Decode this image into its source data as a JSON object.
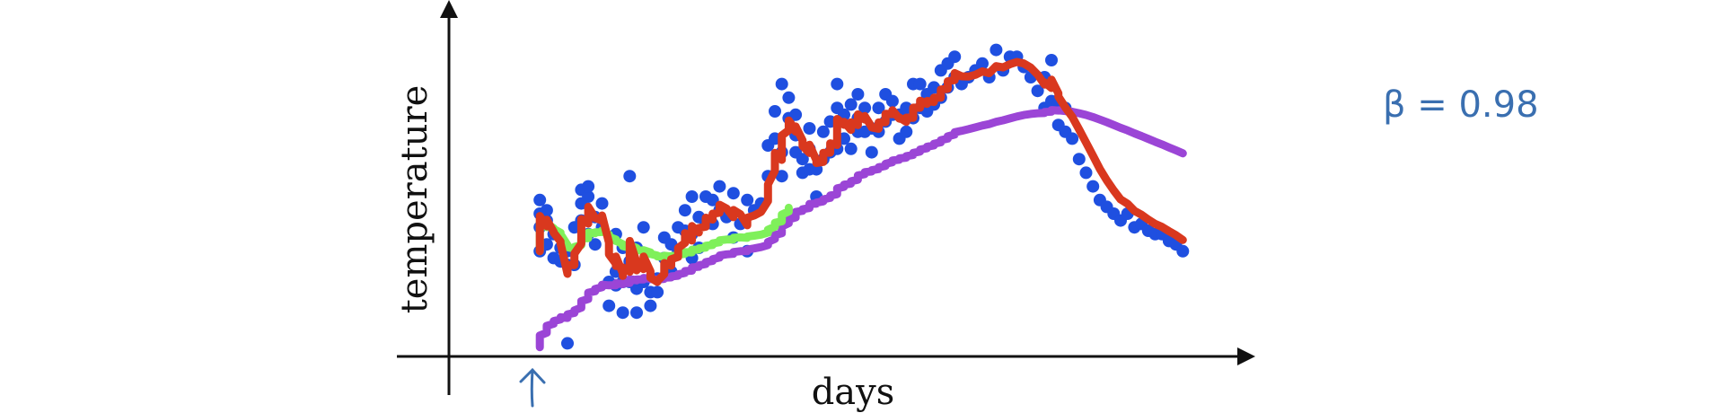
{
  "chart_data": {
    "type": "scatter",
    "title": "",
    "xlabel": "days",
    "ylabel": "temperature",
    "xlim": [
      0,
      100
    ],
    "ylim": [
      0,
      100
    ],
    "grid": false,
    "legend": "none",
    "annotation": "β = 0.98",
    "colors": {
      "points": "#1f4fe0",
      "red": "#d9381e",
      "green": "#7ff05a",
      "purple": "#9b45d6",
      "axis": "#111111",
      "annotation": "#3a6fb0"
    },
    "points": [
      [
        6,
        29
      ],
      [
        6,
        36
      ],
      [
        6,
        40
      ],
      [
        6,
        44
      ],
      [
        7,
        31
      ],
      [
        7,
        38
      ],
      [
        7,
        41
      ],
      [
        8,
        27
      ],
      [
        8,
        34
      ],
      [
        9,
        26
      ],
      [
        9,
        30
      ],
      [
        10,
        2
      ],
      [
        10,
        25
      ],
      [
        10,
        29
      ],
      [
        11,
        25
      ],
      [
        11,
        36
      ],
      [
        12,
        38
      ],
      [
        12,
        43
      ],
      [
        12,
        47
      ],
      [
        13,
        34
      ],
      [
        13,
        45
      ],
      [
        13,
        48
      ],
      [
        14,
        31
      ],
      [
        14,
        39
      ],
      [
        15,
        36
      ],
      [
        15,
        43
      ],
      [
        16,
        13
      ],
      [
        16,
        20
      ],
      [
        17,
        19
      ],
      [
        17,
        23
      ],
      [
        17,
        34
      ],
      [
        18,
        11
      ],
      [
        18,
        20
      ],
      [
        18,
        30
      ],
      [
        19,
        20
      ],
      [
        19,
        26
      ],
      [
        19,
        51
      ],
      [
        20,
        11
      ],
      [
        20,
        18
      ],
      [
        20,
        30
      ],
      [
        21,
        20
      ],
      [
        21,
        36
      ],
      [
        22,
        13
      ],
      [
        22,
        17
      ],
      [
        23,
        17
      ],
      [
        23,
        21
      ],
      [
        24,
        27
      ],
      [
        24,
        33
      ],
      [
        25,
        23
      ],
      [
        25,
        31
      ],
      [
        26,
        29
      ],
      [
        26,
        36
      ],
      [
        27,
        35
      ],
      [
        27,
        41
      ],
      [
        28,
        27
      ],
      [
        28,
        34
      ],
      [
        28,
        45
      ],
      [
        29,
        30
      ],
      [
        29,
        39
      ],
      [
        30,
        37
      ],
      [
        30,
        45
      ],
      [
        31,
        37
      ],
      [
        31,
        44
      ],
      [
        32,
        41
      ],
      [
        32,
        48
      ],
      [
        33,
        39
      ],
      [
        34,
        33
      ],
      [
        34,
        46
      ],
      [
        35,
        37
      ],
      [
        36,
        29
      ],
      [
        36,
        44
      ],
      [
        37,
        41
      ],
      [
        38,
        43
      ],
      [
        39,
        51
      ],
      [
        39,
        60
      ],
      [
        40,
        62
      ],
      [
        40,
        70
      ],
      [
        41,
        51
      ],
      [
        41,
        58
      ],
      [
        41,
        78
      ],
      [
        42,
        68
      ],
      [
        42,
        74
      ],
      [
        43,
        58
      ],
      [
        43,
        63
      ],
      [
        43,
        69
      ],
      [
        44,
        52
      ],
      [
        44,
        56
      ],
      [
        45,
        53
      ],
      [
        45,
        59
      ],
      [
        45,
        65
      ],
      [
        46,
        45
      ],
      [
        46,
        53
      ],
      [
        47,
        56
      ],
      [
        47,
        64
      ],
      [
        48,
        58
      ],
      [
        48,
        67
      ],
      [
        49,
        59
      ],
      [
        49,
        71
      ],
      [
        49,
        78
      ],
      [
        50,
        62
      ],
      [
        50,
        69
      ],
      [
        51,
        59
      ],
      [
        51,
        72
      ],
      [
        52,
        64
      ],
      [
        52,
        68
      ],
      [
        52,
        75
      ],
      [
        53,
        64
      ],
      [
        53,
        71
      ],
      [
        54,
        58
      ],
      [
        54,
        65
      ],
      [
        55,
        64
      ],
      [
        55,
        71
      ],
      [
        56,
        67
      ],
      [
        56,
        75
      ],
      [
        57,
        69
      ],
      [
        57,
        73
      ],
      [
        58,
        62
      ],
      [
        58,
        69
      ],
      [
        59,
        64
      ],
      [
        59,
        71
      ],
      [
        60,
        68
      ],
      [
        60,
        78
      ],
      [
        61,
        71
      ],
      [
        61,
        78
      ],
      [
        62,
        70
      ],
      [
        62,
        75
      ],
      [
        63,
        72
      ],
      [
        63,
        77
      ],
      [
        64,
        74
      ],
      [
        64,
        82
      ],
      [
        65,
        77
      ],
      [
        65,
        84
      ],
      [
        66,
        80
      ],
      [
        66,
        86
      ],
      [
        67,
        78
      ],
      [
        68,
        80
      ],
      [
        69,
        82
      ],
      [
        70,
        84
      ],
      [
        71,
        80
      ],
      [
        72,
        88
      ],
      [
        73,
        82
      ],
      [
        74,
        86
      ],
      [
        75,
        86
      ],
      [
        76,
        83
      ],
      [
        77,
        80
      ],
      [
        78,
        76
      ],
      [
        79,
        71
      ],
      [
        79,
        80
      ],
      [
        80,
        73
      ],
      [
        80,
        85
      ],
      [
        81,
        66
      ],
      [
        81,
        72
      ],
      [
        82,
        64
      ],
      [
        82,
        71
      ],
      [
        83,
        62
      ],
      [
        84,
        56
      ],
      [
        85,
        52
      ],
      [
        86,
        48
      ],
      [
        87,
        44
      ],
      [
        88,
        42
      ],
      [
        89,
        40
      ],
      [
        90,
        38
      ],
      [
        91,
        40
      ],
      [
        92,
        36
      ],
      [
        93,
        37
      ],
      [
        94,
        35
      ],
      [
        95,
        34
      ],
      [
        96,
        34
      ],
      [
        97,
        32
      ],
      [
        98,
        31
      ],
      [
        99,
        29
      ]
    ]
  }
}
